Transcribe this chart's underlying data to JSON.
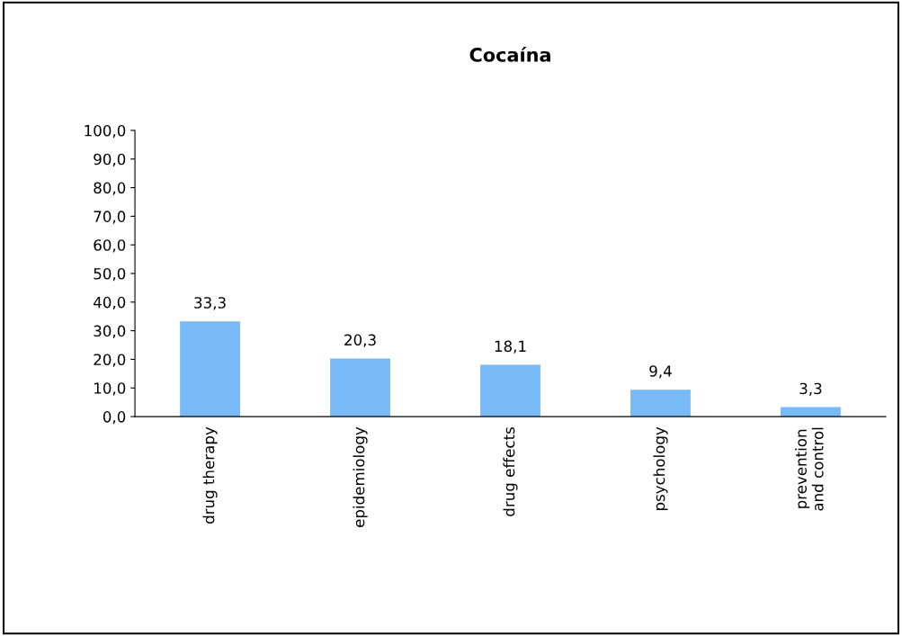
{
  "chart_data": {
    "type": "bar",
    "title": "Cocaína",
    "categories": [
      "drug therapy",
      "epidemiology",
      "drug effects",
      "psychology",
      "prevention\nand control"
    ],
    "values": [
      33.3,
      20.3,
      18.1,
      9.4,
      3.3
    ],
    "value_labels": [
      "33,3",
      "20,3",
      "18,1",
      "9,4",
      "3,3"
    ],
    "color": "#78b9f8",
    "ylim": [
      0,
      100
    ],
    "yticks": [
      {
        "value": 0,
        "label": "0,0"
      },
      {
        "value": 10,
        "label": "10,0"
      },
      {
        "value": 20,
        "label": "20,0"
      },
      {
        "value": 30,
        "label": "30,0"
      },
      {
        "value": 40,
        "label": "40,0"
      },
      {
        "value": 50,
        "label": "50,0"
      },
      {
        "value": 60,
        "label": "60,0"
      },
      {
        "value": 70,
        "label": "70,0"
      },
      {
        "value": 80,
        "label": "80,0"
      },
      {
        "value": 90,
        "label": "90,0"
      },
      {
        "value": 100,
        "label": "100,0"
      }
    ],
    "grid": false,
    "legend": false
  }
}
